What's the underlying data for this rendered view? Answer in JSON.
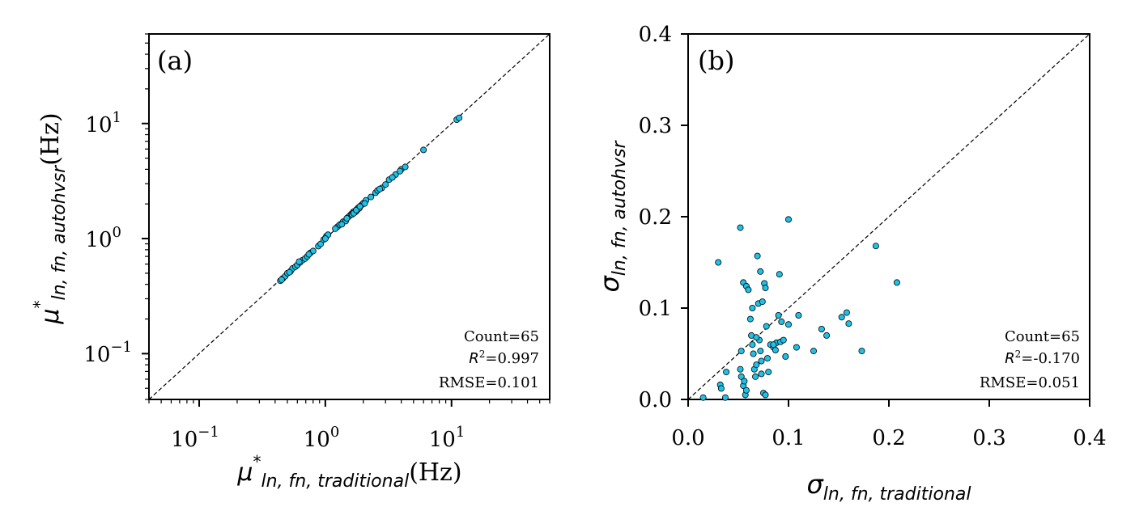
{
  "chart_data": [
    {
      "type": "scatter",
      "panel_label": "(a)",
      "xscale": "log",
      "yscale": "log",
      "xlim": [
        0.04,
        60
      ],
      "ylim": [
        0.04,
        60
      ],
      "x_ticks": [
        {
          "value": 0.1,
          "base": "10",
          "exp": "−1"
        },
        {
          "value": 1,
          "base": "10",
          "exp": "0"
        },
        {
          "value": 10,
          "base": "10",
          "exp": "1"
        }
      ],
      "y_ticks": [
        {
          "value": 0.1,
          "base": "10",
          "exp": "−1"
        },
        {
          "value": 1,
          "base": "10",
          "exp": "0"
        },
        {
          "value": 10,
          "base": "10",
          "exp": "1"
        }
      ],
      "xlabel": {
        "sym": "μ",
        "sup": "*",
        "sub": "ln, fn, traditional",
        "unit": "(Hz)"
      },
      "ylabel": {
        "sym": "μ",
        "sup": "*",
        "sub": "ln, fn, autohvsr",
        "unit": "(Hz)"
      },
      "reference_line": "1:1",
      "stats": {
        "count": "Count=65",
        "r2_label": "R",
        "r2_value": "=0.997",
        "rmse": "RMSE=0.101"
      },
      "marker_color": "#1fc1e8",
      "points": [
        [
          0.44,
          0.43
        ],
        [
          0.46,
          0.45
        ],
        [
          0.48,
          0.47
        ],
        [
          0.5,
          0.5
        ],
        [
          0.53,
          0.52
        ],
        [
          0.55,
          0.55
        ],
        [
          0.58,
          0.57
        ],
        [
          0.6,
          0.59
        ],
        [
          0.63,
          0.62
        ],
        [
          0.66,
          0.65
        ],
        [
          0.69,
          0.67
        ],
        [
          0.72,
          0.7
        ],
        [
          0.76,
          0.75
        ],
        [
          0.8,
          0.78
        ],
        [
          0.88,
          0.86
        ],
        [
          0.92,
          0.9
        ],
        [
          0.97,
          0.98
        ],
        [
          1.02,
          1.05
        ],
        [
          1.05,
          1.08
        ],
        [
          1.25,
          1.27
        ],
        [
          1.3,
          1.32
        ],
        [
          1.38,
          1.4
        ],
        [
          1.45,
          1.42
        ],
        [
          1.5,
          1.52
        ],
        [
          1.55,
          1.57
        ],
        [
          1.6,
          1.63
        ],
        [
          1.63,
          1.62
        ],
        [
          1.66,
          1.7
        ],
        [
          1.7,
          1.73
        ],
        [
          1.74,
          1.71
        ],
        [
          1.78,
          1.8
        ],
        [
          1.8,
          1.78
        ],
        [
          1.83,
          1.86
        ],
        [
          1.86,
          1.84
        ],
        [
          1.9,
          1.92
        ],
        [
          1.95,
          1.97
        ],
        [
          2.0,
          2.03
        ],
        [
          2.1,
          2.15
        ],
        [
          2.5,
          2.5
        ],
        [
          2.6,
          2.62
        ],
        [
          2.8,
          2.75
        ],
        [
          3.0,
          2.95
        ],
        [
          3.2,
          3.25
        ],
        [
          3.6,
          3.6
        ],
        [
          4.0,
          4.0
        ],
        [
          4.3,
          4.2
        ],
        [
          6.0,
          5.9
        ],
        [
          11.0,
          10.8
        ],
        [
          11.5,
          11.2
        ],
        [
          0.45,
          0.44
        ],
        [
          0.52,
          0.51
        ],
        [
          0.62,
          0.63
        ],
        [
          0.74,
          0.73
        ],
        [
          1.0,
          1.0
        ],
        [
          1.2,
          1.22
        ],
        [
          1.35,
          1.33
        ],
        [
          1.48,
          1.5
        ],
        [
          1.68,
          1.66
        ],
        [
          1.76,
          1.77
        ],
        [
          1.88,
          1.9
        ],
        [
          2.05,
          2.02
        ],
        [
          2.3,
          2.3
        ],
        [
          2.7,
          2.7
        ],
        [
          3.4,
          3.4
        ],
        [
          3.9,
          3.85
        ]
      ]
    },
    {
      "type": "scatter",
      "panel_label": "(b)",
      "xscale": "linear",
      "yscale": "linear",
      "xlim": [
        0.0,
        0.4
      ],
      "ylim": [
        0.0,
        0.4
      ],
      "x_ticks": [
        "0.0",
        "0.1",
        "0.2",
        "0.3",
        "0.4"
      ],
      "y_ticks": [
        "0.0",
        "0.1",
        "0.2",
        "0.3",
        "0.4"
      ],
      "xlabel": {
        "sym": "σ",
        "sub": "ln, fn, traditional"
      },
      "ylabel": {
        "sym": "σ",
        "sub": "ln, fn, autohvsr"
      },
      "reference_line": "1:1",
      "stats": {
        "count": "Count=65",
        "r2_label": "R",
        "r2_value": "=-0.170",
        "rmse": "RMSE=0.051"
      },
      "marker_color": "#1fc1e8",
      "points": [
        [
          0.015,
          0.002
        ],
        [
          0.03,
          0.15
        ],
        [
          0.032,
          0.016
        ],
        [
          0.033,
          0.012
        ],
        [
          0.037,
          0.002
        ],
        [
          0.038,
          0.03
        ],
        [
          0.052,
          0.188
        ],
        [
          0.055,
          0.128
        ],
        [
          0.058,
          0.124
        ],
        [
          0.053,
          0.053
        ],
        [
          0.052,
          0.033
        ],
        [
          0.053,
          0.025
        ],
        [
          0.055,
          0.015
        ],
        [
          0.056,
          0.02
        ],
        [
          0.057,
          0.005
        ],
        [
          0.058,
          0.01
        ],
        [
          0.062,
          0.088
        ],
        [
          0.063,
          0.07
        ],
        [
          0.064,
          0.1
        ],
        [
          0.064,
          0.06
        ],
        [
          0.065,
          0.05
        ],
        [
          0.066,
          0.033
        ],
        [
          0.067,
          0.025
        ],
        [
          0.068,
          0.038
        ],
        [
          0.069,
          0.157
        ],
        [
          0.07,
          0.105
        ],
        [
          0.071,
          0.065
        ],
        [
          0.072,
          0.14
        ],
        [
          0.072,
          0.053
        ],
        [
          0.073,
          0.042
        ],
        [
          0.073,
          0.028
        ],
        [
          0.074,
          0.107
        ],
        [
          0.075,
          0.007
        ],
        [
          0.076,
          0.127
        ],
        [
          0.077,
          0.005
        ],
        [
          0.077,
          0.122
        ],
        [
          0.078,
          0.08
        ],
        [
          0.079,
          0.045
        ],
        [
          0.08,
          0.03
        ],
        [
          0.082,
          0.06
        ],
        [
          0.085,
          0.057
        ],
        [
          0.087,
          0.054
        ],
        [
          0.088,
          0.062
        ],
        [
          0.09,
          0.092
        ],
        [
          0.091,
          0.137
        ],
        [
          0.092,
          0.063
        ],
        [
          0.093,
          0.085
        ],
        [
          0.097,
          0.047
        ],
        [
          0.1,
          0.197
        ],
        [
          0.1,
          0.082
        ],
        [
          0.108,
          0.057
        ],
        [
          0.11,
          0.092
        ],
        [
          0.125,
          0.053
        ],
        [
          0.133,
          0.077
        ],
        [
          0.138,
          0.07
        ],
        [
          0.153,
          0.09
        ],
        [
          0.158,
          0.095
        ],
        [
          0.16,
          0.083
        ],
        [
          0.173,
          0.053
        ],
        [
          0.187,
          0.168
        ],
        [
          0.208,
          0.128
        ],
        [
          0.095,
          0.065
        ],
        [
          0.068,
          0.068
        ],
        [
          0.06,
          0.12
        ],
        [
          0.085,
          0.06
        ]
      ]
    }
  ]
}
